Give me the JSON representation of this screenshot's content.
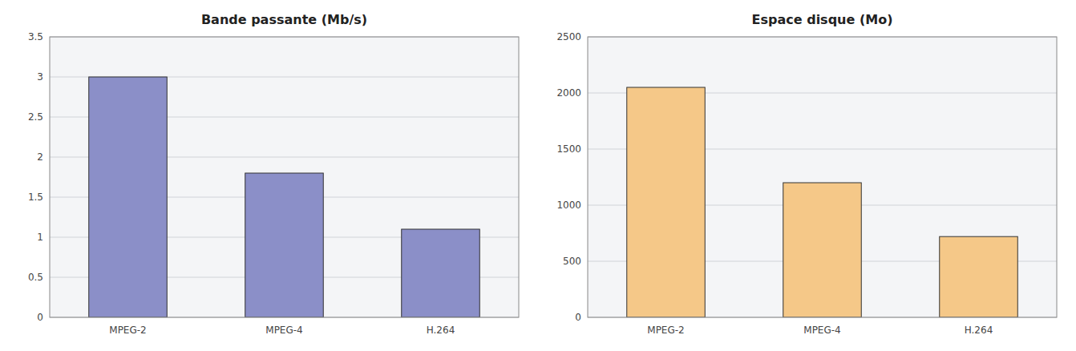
{
  "chart_data": [
    {
      "type": "bar",
      "title": "Bande passante (Mb/s)",
      "categories": [
        "MPEG-2",
        "MPEG-4",
        "H.264"
      ],
      "values": [
        3.0,
        1.8,
        1.1
      ],
      "color": "#8B8FC8",
      "ylim": [
        0,
        3.5
      ],
      "yticks": [
        0,
        0.5,
        1,
        1.5,
        2,
        2.5,
        3,
        3.5
      ],
      "grid": true
    },
    {
      "type": "bar",
      "title": "Espace disque (Mo)",
      "categories": [
        "MPEG-2",
        "MPEG-4",
        "H.264"
      ],
      "values": [
        2050,
        1200,
        720
      ],
      "color": "#F5C888",
      "ylim": [
        0,
        2500
      ],
      "yticks": [
        0,
        500,
        1000,
        1500,
        2000,
        2500
      ],
      "grid": true
    }
  ]
}
